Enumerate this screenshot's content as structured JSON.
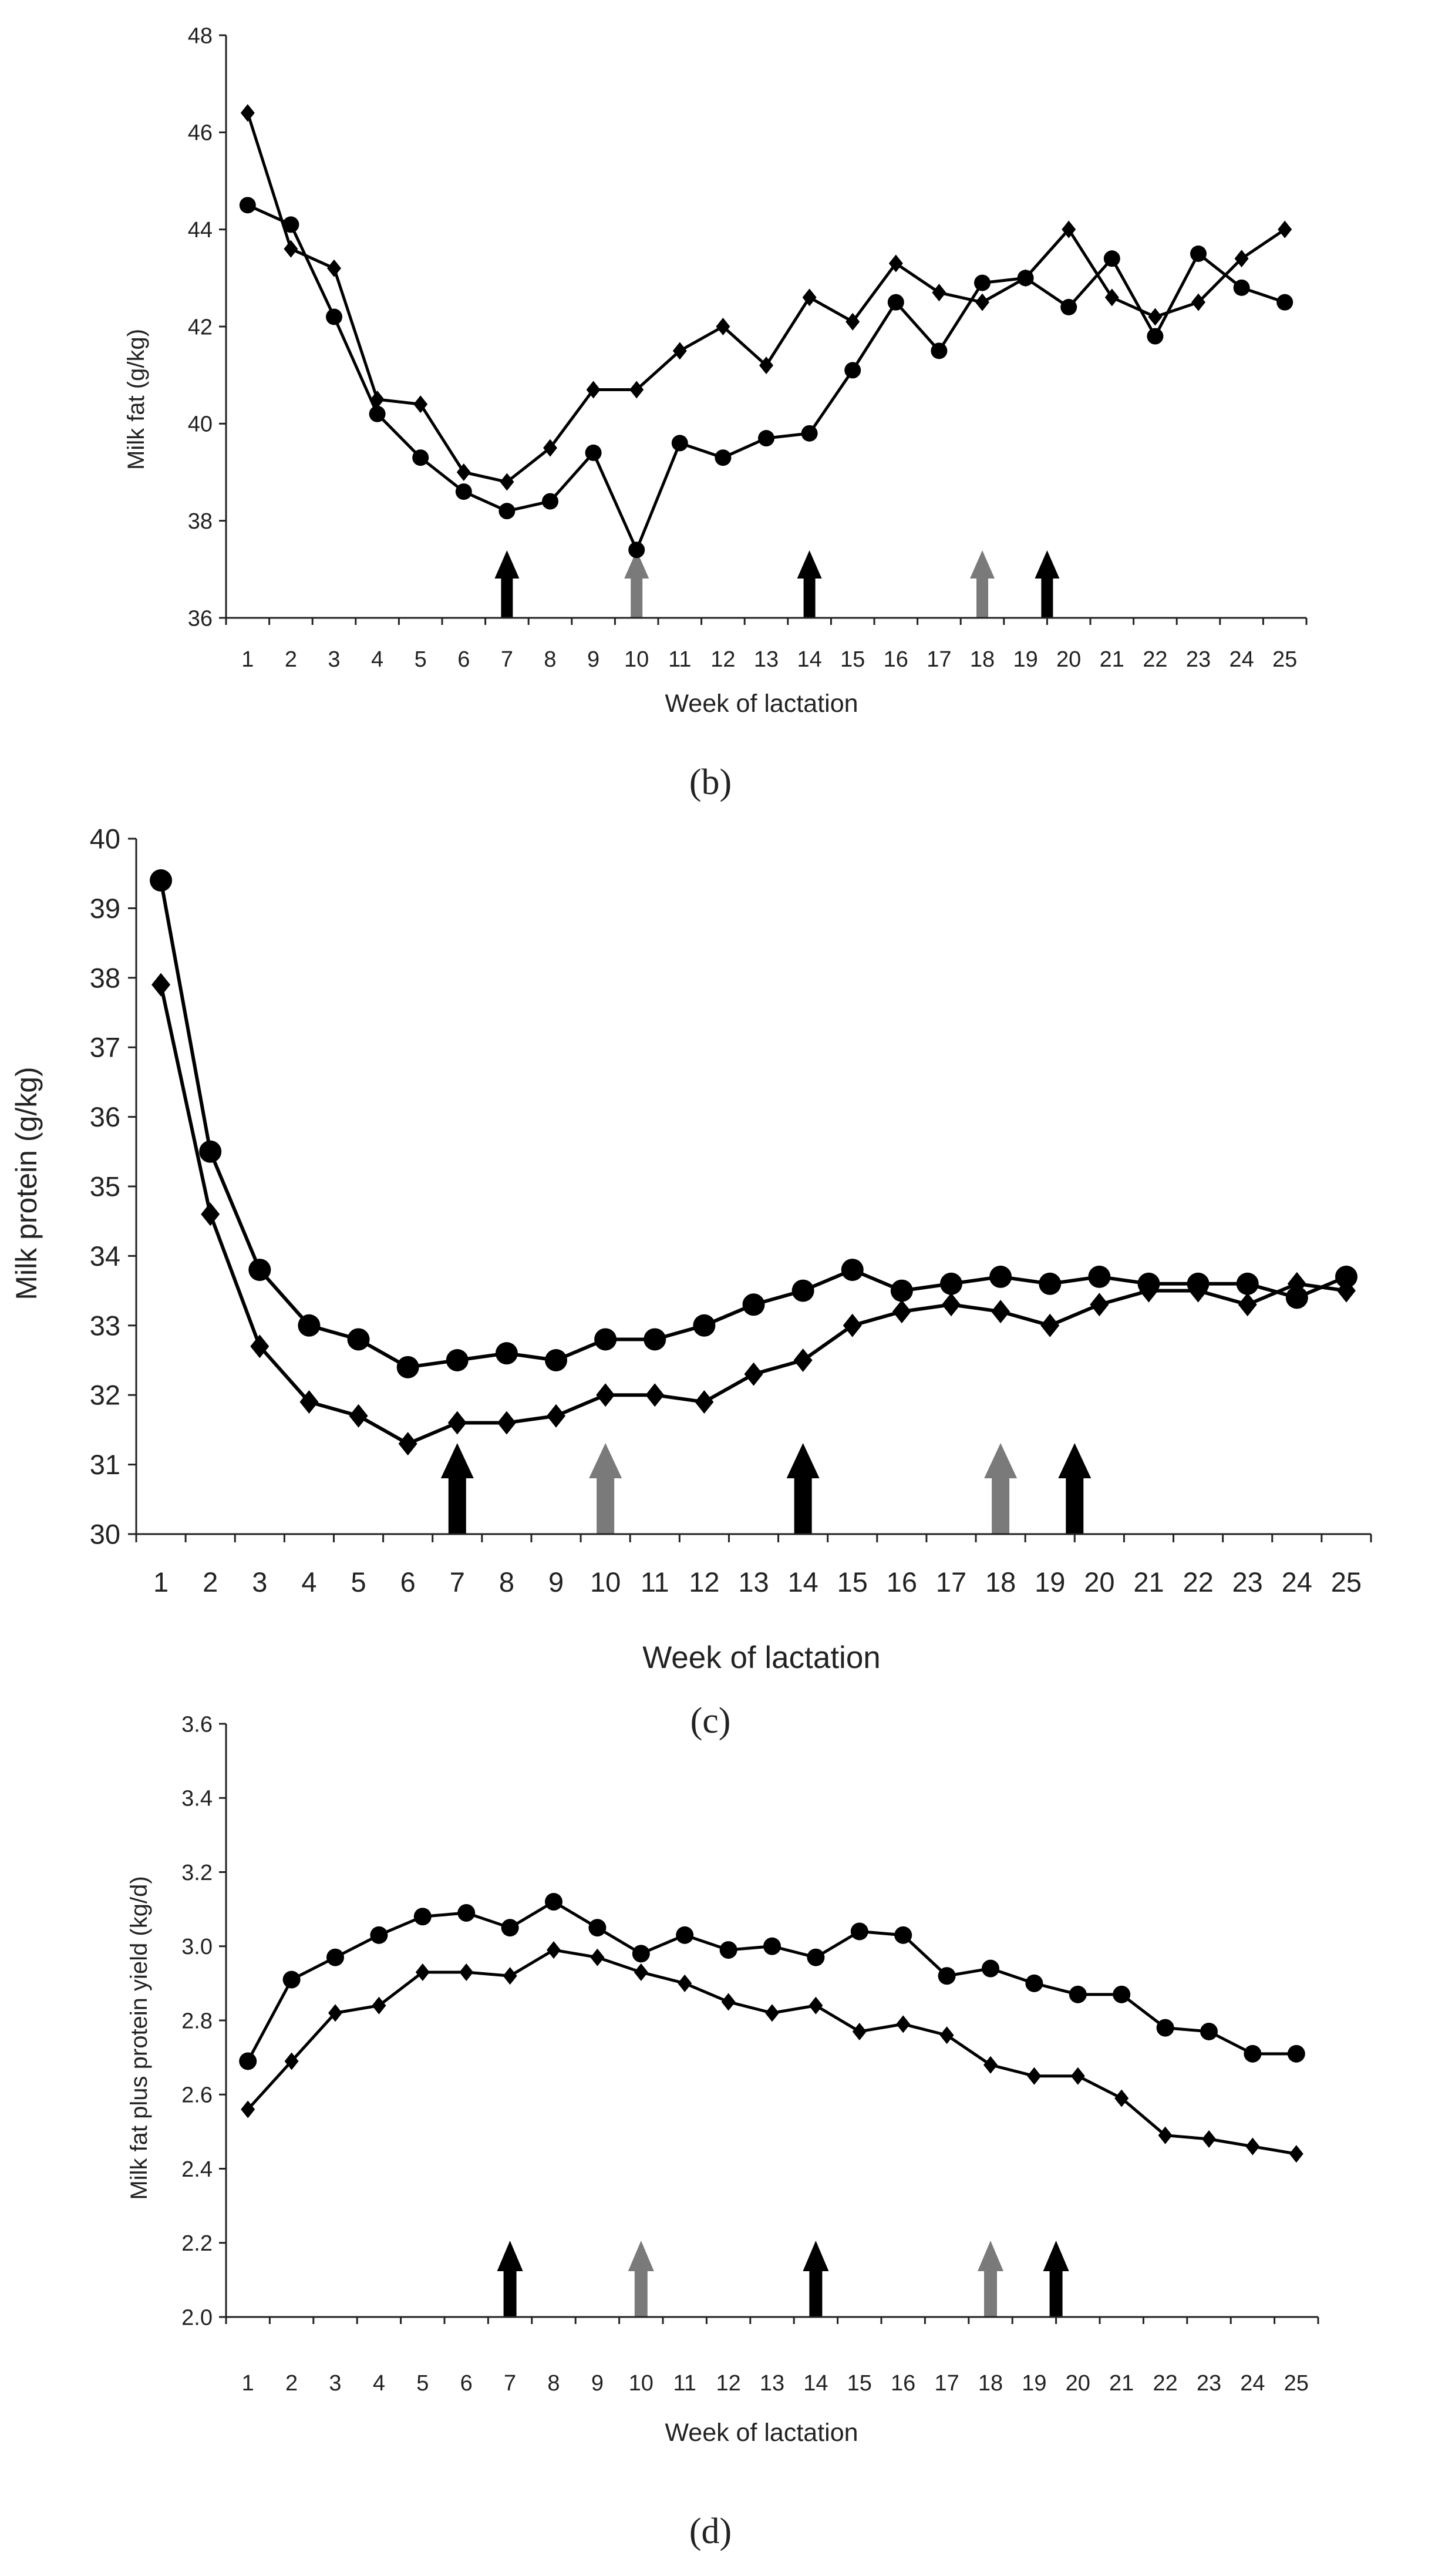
{
  "colors": {
    "line": "#000000",
    "axis": "#222222",
    "arrow_black": "#000000",
    "arrow_grey": "#7a7a7a"
  },
  "chart_data": [
    {
      "type": "line",
      "panel": "b",
      "panel_label": "(b)",
      "title": "",
      "xlabel": "Week of lactation",
      "ylabel": "Milk fat (g/kg)",
      "x": [
        1,
        2,
        3,
        4,
        5,
        6,
        7,
        8,
        9,
        10,
        11,
        12,
        13,
        14,
        15,
        16,
        17,
        18,
        19,
        20,
        21,
        22,
        23,
        24,
        25
      ],
      "ylim": [
        36,
        48
      ],
      "yticks": [
        36,
        38,
        40,
        42,
        44,
        46,
        48
      ],
      "grid": false,
      "series": [
        {
          "name": "diamond series",
          "marker": "diamond",
          "values": [
            46.4,
            43.6,
            43.2,
            40.5,
            40.4,
            39.0,
            38.8,
            39.5,
            40.7,
            40.7,
            41.5,
            42.0,
            41.2,
            42.6,
            42.1,
            43.3,
            42.7,
            42.5,
            43.0,
            44.0,
            42.6,
            42.2,
            42.5,
            43.4,
            44.0
          ]
        },
        {
          "name": "circle series",
          "marker": "circle",
          "values": [
            44.5,
            44.1,
            42.2,
            40.2,
            39.3,
            38.6,
            38.2,
            38.4,
            39.4,
            37.4,
            39.6,
            39.3,
            39.7,
            39.8,
            41.1,
            42.5,
            41.5,
            42.9,
            43.0,
            42.4,
            43.4,
            41.8,
            43.5,
            42.8,
            42.5
          ]
        }
      ],
      "arrows": [
        {
          "x": 7,
          "color": "black"
        },
        {
          "x": 10,
          "color": "grey"
        },
        {
          "x": 14,
          "color": "black"
        },
        {
          "x": 18,
          "color": "grey"
        },
        {
          "x": 19.5,
          "color": "black"
        }
      ]
    },
    {
      "type": "line",
      "panel": "c",
      "panel_label": "(c)",
      "title": "",
      "xlabel": "Week of lactation",
      "ylabel": "Milk protein (g/kg)",
      "x": [
        1,
        2,
        3,
        4,
        5,
        6,
        7,
        8,
        9,
        10,
        11,
        12,
        13,
        14,
        15,
        16,
        17,
        18,
        19,
        20,
        21,
        22,
        23,
        24,
        25
      ],
      "ylim": [
        30,
        40
      ],
      "yticks": [
        30,
        31,
        32,
        33,
        34,
        35,
        36,
        37,
        38,
        39,
        40
      ],
      "grid": false,
      "series": [
        {
          "name": "circle series",
          "marker": "circle",
          "values": [
            39.4,
            35.5,
            33.8,
            33.0,
            32.8,
            32.4,
            32.5,
            32.6,
            32.5,
            32.8,
            32.8,
            33.0,
            33.3,
            33.5,
            33.8,
            33.5,
            33.6,
            33.7,
            33.6,
            33.7,
            33.6,
            33.6,
            33.6,
            33.4,
            33.7
          ]
        },
        {
          "name": "diamond series",
          "marker": "diamond",
          "values": [
            37.9,
            34.6,
            32.7,
            31.9,
            31.7,
            31.3,
            31.6,
            31.6,
            31.7,
            32.0,
            32.0,
            31.9,
            32.3,
            32.5,
            33.0,
            33.2,
            33.3,
            33.2,
            33.0,
            33.3,
            33.5,
            33.5,
            33.3,
            33.6,
            33.5
          ]
        }
      ],
      "arrows": [
        {
          "x": 7,
          "color": "black"
        },
        {
          "x": 10,
          "color": "grey"
        },
        {
          "x": 14,
          "color": "black"
        },
        {
          "x": 18,
          "color": "grey"
        },
        {
          "x": 19.5,
          "color": "black"
        }
      ]
    },
    {
      "type": "line",
      "panel": "d",
      "panel_label": "(d)",
      "title": "",
      "xlabel": "Week of lactation",
      "ylabel": "Milk fat plus protein yield (kg/d)",
      "x": [
        1,
        2,
        3,
        4,
        5,
        6,
        7,
        8,
        9,
        10,
        11,
        12,
        13,
        14,
        15,
        16,
        17,
        18,
        19,
        20,
        21,
        22,
        23,
        24,
        25
      ],
      "ylim": [
        2.0,
        3.6
      ],
      "yticks": [
        2.0,
        2.2,
        2.4,
        2.6,
        2.8,
        3.0,
        3.2,
        3.4,
        3.6
      ],
      "ytick_labels": [
        "2.0",
        "2.2",
        "2.4",
        "2.6",
        "2.8",
        "3.0",
        "3.2",
        "3.4",
        "3.6"
      ],
      "grid": false,
      "series": [
        {
          "name": "circle series",
          "marker": "circle",
          "values": [
            2.69,
            2.91,
            2.97,
            3.03,
            3.08,
            3.09,
            3.05,
            3.12,
            3.05,
            2.98,
            3.03,
            2.99,
            3.0,
            2.97,
            3.04,
            3.03,
            2.92,
            2.94,
            2.9,
            2.87,
            2.87,
            2.78,
            2.77,
            2.71,
            2.71
          ]
        },
        {
          "name": "diamond series",
          "marker": "diamond",
          "values": [
            2.56,
            2.69,
            2.82,
            2.84,
            2.93,
            2.93,
            2.92,
            2.99,
            2.97,
            2.93,
            2.9,
            2.85,
            2.82,
            2.84,
            2.77,
            2.79,
            2.76,
            2.68,
            2.65,
            2.65,
            2.59,
            2.49,
            2.48,
            2.46,
            2.44
          ]
        }
      ],
      "arrows": [
        {
          "x": 7,
          "color": "black"
        },
        {
          "x": 10,
          "color": "grey"
        },
        {
          "x": 14,
          "color": "black"
        },
        {
          "x": 18,
          "color": "grey"
        },
        {
          "x": 19.5,
          "color": "black"
        }
      ]
    }
  ]
}
